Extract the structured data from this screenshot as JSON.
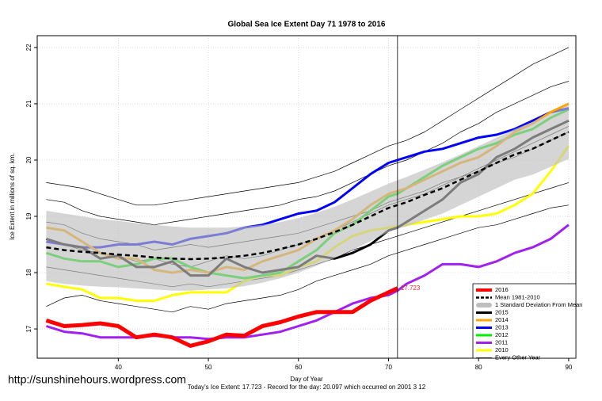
{
  "chart_data": {
    "type": "line",
    "title": "Global Sea Ice Extent Day 71 1978 to 2016",
    "x_label": "Day of Year",
    "y_label": "Ice Extent in millions of sq. km.",
    "footer": "Today's Ice Extent: 17.723 - Record for the day: 20.097 which occurred on 2001 3 12",
    "watermark": "http://sunshinehours.wordpress.com",
    "annotation": {
      "x": 71,
      "y": 17.723,
      "label": "17.723",
      "color": "#e8262c"
    },
    "vline": 71,
    "xlim": [
      31,
      90.8
    ],
    "ylim": [
      16.48,
      22.21
    ],
    "xticks": [
      40,
      50,
      60,
      70,
      80,
      90
    ],
    "yticks": [
      17,
      18,
      19,
      20,
      21,
      22
    ],
    "grid": true,
    "legend": "bottom-right",
    "x": [
      32,
      34,
      36,
      38,
      40,
      42,
      44,
      46,
      48,
      50,
      52,
      54,
      56,
      58,
      60,
      62,
      64,
      66,
      68,
      70,
      71,
      72,
      74,
      76,
      78,
      80,
      82,
      84,
      86,
      88,
      90
    ],
    "series": [
      {
        "name": "2016",
        "color": "#ff0000",
        "lwd": 5,
        "values": [
          17.15,
          17.05,
          17.07,
          17.1,
          17.05,
          16.85,
          16.9,
          16.85,
          16.7,
          16.78,
          16.9,
          16.88,
          17.05,
          17.12,
          17.22,
          17.3,
          17.3,
          17.3,
          17.5,
          17.65,
          17.723,
          null,
          null,
          null,
          null,
          null,
          null,
          null,
          null,
          null,
          null
        ]
      },
      {
        "name": "Mean 1981-2010",
        "color": "#000000",
        "lwd": 2.5,
        "dash": true,
        "values": [
          18.45,
          18.4,
          18.37,
          18.35,
          18.32,
          18.3,
          18.27,
          18.25,
          18.24,
          18.25,
          18.27,
          18.3,
          18.35,
          18.42,
          18.5,
          18.6,
          18.72,
          18.85,
          19.0,
          19.15,
          19.2,
          19.25,
          19.38,
          19.5,
          19.65,
          19.8,
          19.95,
          20.1,
          20.2,
          20.35,
          20.5
        ]
      },
      {
        "name": "1 Standard Deviation From Mean",
        "color": "#bebebe",
        "upper": [
          19.1,
          19.05,
          19.0,
          18.95,
          18.92,
          18.88,
          18.85,
          18.82,
          18.8,
          18.8,
          18.8,
          18.82,
          18.85,
          18.9,
          18.97,
          19.06,
          19.17,
          19.3,
          19.44,
          19.58,
          19.64,
          19.7,
          19.83,
          19.96,
          20.1,
          20.25,
          20.4,
          20.55,
          20.68,
          20.82,
          20.98
        ],
        "lower": [
          17.85,
          17.8,
          17.77,
          17.75,
          17.74,
          17.72,
          17.7,
          17.68,
          17.68,
          17.7,
          17.72,
          17.76,
          17.82,
          17.9,
          18.0,
          18.12,
          18.26,
          18.4,
          18.56,
          18.72,
          18.78,
          18.82,
          18.94,
          19.05,
          19.2,
          19.35,
          19.5,
          19.65,
          19.74,
          19.88,
          20.02
        ]
      },
      {
        "name": "2015",
        "color": "#000000",
        "lwd": 3,
        "values": [
          18.6,
          18.5,
          18.45,
          18.25,
          18.3,
          18.1,
          18.1,
          18.2,
          17.95,
          17.95,
          18.25,
          18.1,
          18.0,
          18.05,
          18.1,
          18.3,
          18.25,
          18.35,
          18.5,
          18.75,
          18.8,
          18.9,
          19.1,
          19.3,
          19.6,
          19.75,
          20.05,
          20.2,
          20.4,
          20.55,
          20.7
        ]
      },
      {
        "name": "2014",
        "color": "#ffa500",
        "lwd": 3,
        "values": [
          18.8,
          18.75,
          18.55,
          18.35,
          18.25,
          18.25,
          18.05,
          18.0,
          18.05,
          18.0,
          18.1,
          18.05,
          18.2,
          18.3,
          18.4,
          18.6,
          18.75,
          18.95,
          19.2,
          19.4,
          19.45,
          19.5,
          19.65,
          19.8,
          19.95,
          20.05,
          20.25,
          20.5,
          20.65,
          20.85,
          21.0
        ]
      },
      {
        "name": "2013",
        "color": "#0000ff",
        "lwd": 3,
        "values": [
          18.55,
          18.5,
          18.45,
          18.45,
          18.5,
          18.5,
          18.55,
          18.5,
          18.6,
          18.65,
          18.7,
          18.8,
          18.85,
          18.95,
          19.05,
          19.1,
          19.25,
          19.5,
          19.75,
          19.95,
          20.0,
          20.05,
          20.15,
          20.2,
          20.3,
          20.4,
          20.45,
          20.55,
          20.7,
          20.85,
          20.92
        ]
      },
      {
        "name": "2012",
        "color": "#00ee00",
        "lwd": 3,
        "values": [
          18.35,
          18.25,
          18.2,
          18.2,
          18.1,
          18.15,
          18.25,
          18.25,
          18.1,
          18.0,
          17.95,
          17.9,
          17.95,
          18.0,
          18.2,
          18.4,
          18.7,
          18.85,
          19.1,
          19.35,
          19.4,
          19.5,
          19.7,
          19.9,
          20.05,
          20.2,
          20.3,
          20.45,
          20.55,
          20.75,
          20.9
        ]
      },
      {
        "name": "2011",
        "color": "#a020f0",
        "lwd": 3,
        "values": [
          17.05,
          16.95,
          16.92,
          16.85,
          16.85,
          16.85,
          16.88,
          16.85,
          16.85,
          16.82,
          16.85,
          16.85,
          16.9,
          16.95,
          17.05,
          17.15,
          17.3,
          17.45,
          17.55,
          17.6,
          17.68,
          17.8,
          17.95,
          18.15,
          18.15,
          18.1,
          18.2,
          18.35,
          18.45,
          18.6,
          18.85
        ]
      },
      {
        "name": "2010",
        "color": "#ffff00",
        "lwd": 3,
        "values": [
          17.8,
          17.75,
          17.7,
          17.55,
          17.55,
          17.5,
          17.5,
          17.6,
          17.65,
          17.65,
          17.65,
          17.85,
          17.95,
          17.95,
          18.1,
          18.2,
          18.45,
          18.65,
          18.75,
          18.8,
          18.82,
          18.85,
          18.9,
          18.95,
          19.0,
          19.0,
          19.05,
          19.2,
          19.4,
          19.8,
          20.25
        ]
      },
      {
        "name": "Every Other Year",
        "color": "#000000",
        "lwd": 0.7,
        "lines": [
          [
            19.6,
            19.55,
            19.5,
            19.4,
            19.3,
            19.2,
            19.2,
            19.25,
            19.3,
            19.35,
            19.4,
            19.45,
            19.5,
            19.55,
            19.6,
            19.7,
            19.8,
            19.95,
            20.1,
            20.25,
            20.3,
            20.35,
            20.5,
            20.7,
            20.9,
            21.1,
            21.3,
            21.5,
            21.7,
            21.85,
            22.0
          ],
          [
            19.3,
            19.25,
            19.1,
            19.0,
            18.95,
            18.9,
            18.85,
            18.9,
            18.95,
            19.0,
            19.05,
            19.1,
            19.15,
            19.2,
            19.3,
            19.35,
            19.45,
            19.6,
            19.75,
            19.9,
            19.95,
            20.0,
            20.15,
            20.3,
            20.5,
            20.65,
            20.85,
            21.0,
            21.15,
            21.3,
            21.4
          ],
          [
            18.9,
            18.85,
            18.7,
            18.6,
            18.55,
            18.5,
            18.4,
            18.45,
            18.5,
            18.45,
            18.5,
            18.55,
            18.6,
            18.65,
            18.7,
            18.8,
            18.9,
            19.0,
            19.1,
            19.25,
            19.3,
            19.35,
            19.45,
            19.6,
            19.7,
            19.8,
            19.95,
            20.05,
            20.2,
            20.35,
            20.5
          ],
          [
            18.1,
            18.05,
            18.0,
            17.95,
            17.9,
            17.85,
            17.8,
            17.75,
            17.8,
            17.75,
            17.8,
            17.85,
            17.9,
            17.95,
            18.05,
            18.15,
            18.25,
            18.4,
            18.5,
            18.6,
            18.65,
            18.7,
            18.8,
            18.9,
            19.0,
            19.1,
            19.2,
            19.3,
            19.4,
            19.5,
            19.6
          ],
          [
            17.4,
            17.55,
            17.6,
            17.5,
            17.45,
            17.4,
            17.35,
            17.3,
            17.4,
            17.35,
            17.45,
            17.5,
            17.55,
            17.6,
            17.7,
            17.85,
            17.95,
            18.05,
            18.15,
            18.3,
            18.35,
            18.4,
            18.5,
            18.6,
            18.7,
            18.8,
            18.85,
            18.95,
            19.05,
            19.15,
            19.2
          ],
          [
            18.6,
            18.5,
            18.4,
            18.35,
            18.3,
            18.2,
            18.25,
            18.15,
            18.1,
            18.2,
            18.3,
            18.25,
            18.3,
            18.4,
            18.5,
            18.6,
            18.75,
            18.9,
            19.05,
            19.2,
            19.25,
            19.3,
            19.4,
            19.55,
            19.7,
            19.85,
            20.0,
            20.15,
            20.3,
            20.45,
            20.6
          ]
        ]
      }
    ]
  }
}
